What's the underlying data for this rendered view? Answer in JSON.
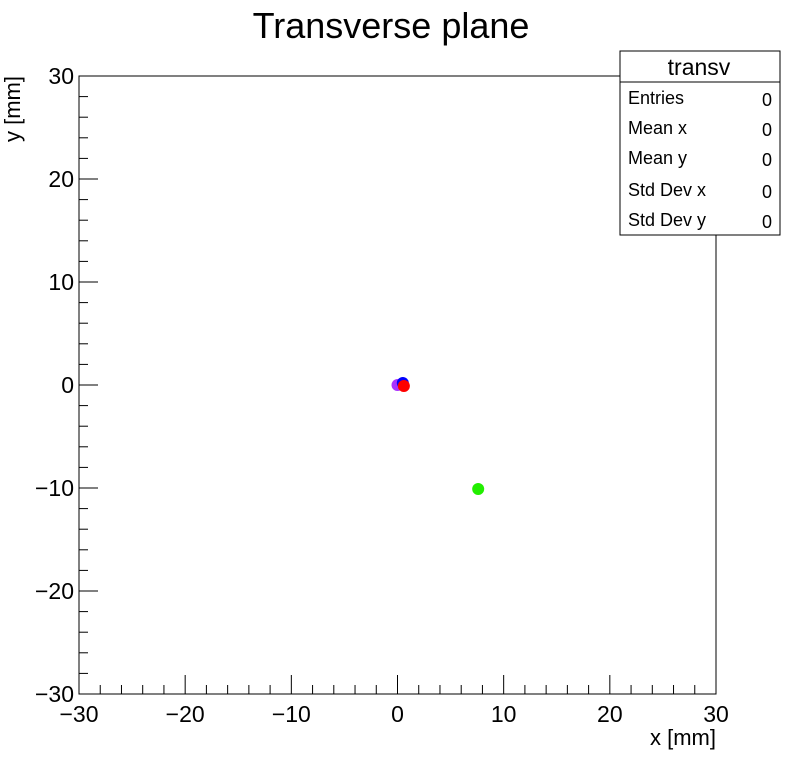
{
  "chart_data": {
    "type": "scatter",
    "title": "Transverse plane",
    "xlabel": "x [mm]",
    "ylabel": "y [mm]",
    "xlim": [
      -30,
      30
    ],
    "ylim": [
      -30,
      30
    ],
    "x_ticks": [
      -30,
      -20,
      -10,
      0,
      10,
      20,
      30
    ],
    "y_ticks": [
      -30,
      -20,
      -10,
      0,
      10,
      20,
      30
    ],
    "x_tick_labels": [
      "−30",
      "−20",
      "−10",
      "0",
      "10",
      "20",
      "30"
    ],
    "y_tick_labels": [
      "−30",
      "−20",
      "−10",
      "0",
      "10",
      "20",
      "30"
    ],
    "grid": false,
    "points": [
      {
        "x": 0.0,
        "y": 0.0,
        "color": "#aa33ff"
      },
      {
        "x": 0.5,
        "y": 0.2,
        "color": "#0000ff"
      },
      {
        "x": 0.6,
        "y": -0.1,
        "color": "#ff0000"
      },
      {
        "x": 7.6,
        "y": -10.1,
        "color": "#22ee00"
      }
    ],
    "stats_box": {
      "title": "transv",
      "placement": "top-right",
      "rows": [
        {
          "label": "Entries",
          "value": "0"
        },
        {
          "label": "Mean x",
          "value": "0"
        },
        {
          "label": "Mean y",
          "value": "0"
        },
        {
          "label": "Std Dev x",
          "value": "0"
        },
        {
          "label": "Std Dev y",
          "value": "0"
        }
      ]
    }
  }
}
